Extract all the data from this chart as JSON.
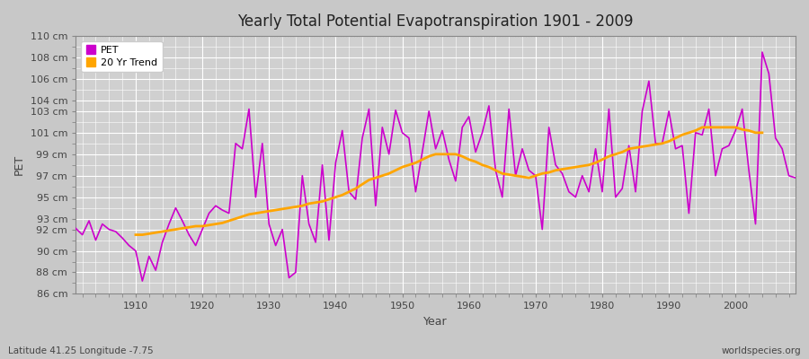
{
  "title": "Yearly Total Potential Evapotranspiration 1901 - 2009",
  "xlabel": "Year",
  "ylabel": "PET",
  "subtitle": "Latitude 41.25 Longitude -7.75",
  "watermark": "worldspecies.org",
  "pet_color": "#cc00cc",
  "trend_color": "#ffa500",
  "bg_color": "#c8c8c8",
  "plot_bg_color": "#d0d0d0",
  "ylim": [
    86,
    110
  ],
  "yticks": [
    86,
    88,
    90,
    92,
    93,
    95,
    97,
    99,
    101,
    103,
    104,
    106,
    108,
    110
  ],
  "xlim": [
    1901,
    2009
  ],
  "xticks": [
    1910,
    1920,
    1930,
    1940,
    1950,
    1960,
    1970,
    1980,
    1990,
    2000
  ],
  "years": [
    1901,
    1902,
    1903,
    1904,
    1905,
    1906,
    1907,
    1908,
    1909,
    1910,
    1911,
    1912,
    1913,
    1914,
    1915,
    1916,
    1917,
    1918,
    1919,
    1920,
    1921,
    1922,
    1923,
    1924,
    1925,
    1926,
    1927,
    1928,
    1929,
    1930,
    1931,
    1932,
    1933,
    1934,
    1935,
    1936,
    1937,
    1938,
    1939,
    1940,
    1941,
    1942,
    1943,
    1944,
    1945,
    1946,
    1947,
    1948,
    1949,
    1950,
    1951,
    1952,
    1953,
    1954,
    1955,
    1956,
    1957,
    1958,
    1959,
    1960,
    1961,
    1962,
    1963,
    1964,
    1965,
    1966,
    1967,
    1968,
    1969,
    1970,
    1971,
    1972,
    1973,
    1974,
    1975,
    1976,
    1977,
    1978,
    1979,
    1980,
    1981,
    1982,
    1983,
    1984,
    1985,
    1986,
    1987,
    1988,
    1989,
    1990,
    1991,
    1992,
    1993,
    1994,
    1995,
    1996,
    1997,
    1998,
    1999,
    2000,
    2001,
    2002,
    2003,
    2004,
    2005,
    2006,
    2007,
    2008,
    2009
  ],
  "pet": [
    92.1,
    91.5,
    92.8,
    91.0,
    92.5,
    92.0,
    91.8,
    91.2,
    90.5,
    90.0,
    87.2,
    89.5,
    88.2,
    90.8,
    92.5,
    94.0,
    92.8,
    91.5,
    90.5,
    92.0,
    93.5,
    94.2,
    93.8,
    93.5,
    100.0,
    99.5,
    103.2,
    95.0,
    100.0,
    92.5,
    90.5,
    92.0,
    87.5,
    88.0,
    97.0,
    92.5,
    90.8,
    98.0,
    91.0,
    98.2,
    101.2,
    95.5,
    94.8,
    100.5,
    103.2,
    94.2,
    101.5,
    99.0,
    103.1,
    101.0,
    100.5,
    95.5,
    99.2,
    103.0,
    99.5,
    101.2,
    98.5,
    96.5,
    101.5,
    102.5,
    99.2,
    101.0,
    103.5,
    97.5,
    95.0,
    103.2,
    97.0,
    99.5,
    97.5,
    97.0,
    92.0,
    101.5,
    98.0,
    97.2,
    95.5,
    95.0,
    97.0,
    95.5,
    99.5,
    95.5,
    103.2,
    95.0,
    95.8,
    99.8,
    95.5,
    103.0,
    105.8,
    100.0,
    100.0,
    103.0,
    99.5,
    99.8,
    93.5,
    101.0,
    100.8,
    103.2,
    97.0,
    99.5,
    99.8,
    101.2,
    103.2,
    97.5,
    92.5,
    108.5,
    106.5,
    100.5,
    99.5,
    97.0,
    96.8
  ],
  "trend": [
    null,
    null,
    null,
    null,
    null,
    null,
    null,
    null,
    null,
    91.5,
    91.5,
    91.6,
    91.7,
    91.8,
    91.9,
    92.0,
    92.1,
    92.2,
    92.3,
    92.3,
    92.4,
    92.5,
    92.6,
    92.8,
    93.0,
    93.2,
    93.4,
    93.5,
    93.6,
    93.7,
    93.8,
    93.9,
    94.0,
    94.1,
    94.2,
    94.4,
    94.5,
    94.6,
    94.8,
    95.0,
    95.2,
    95.5,
    95.8,
    96.2,
    96.6,
    96.8,
    97.0,
    97.2,
    97.5,
    97.8,
    98.0,
    98.2,
    98.5,
    98.8,
    99.0,
    99.0,
    99.0,
    99.0,
    98.8,
    98.5,
    98.3,
    98.0,
    97.8,
    97.5,
    97.2,
    97.1,
    97.0,
    96.9,
    96.8,
    97.0,
    97.2,
    97.3,
    97.5,
    97.6,
    97.7,
    97.8,
    97.9,
    98.0,
    98.2,
    98.5,
    98.8,
    99.0,
    99.2,
    99.5,
    99.6,
    99.7,
    99.8,
    99.9,
    100.0,
    100.2,
    100.5,
    100.8,
    101.0,
    101.2,
    101.5,
    101.5,
    101.5,
    101.5,
    101.5,
    101.5,
    101.3,
    101.2,
    101.0,
    101.0,
    null,
    null,
    null,
    null,
    null
  ]
}
